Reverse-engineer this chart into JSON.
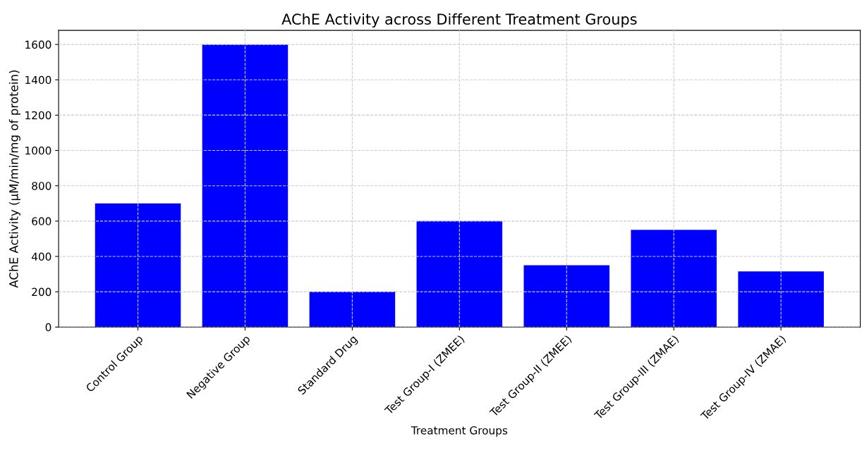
{
  "chart_data": {
    "type": "bar",
    "title": "AChE Activity across Different Treatment Groups",
    "xlabel": "Treatment Groups",
    "ylabel": "AChE Activity (µM/min/mg of protein)",
    "categories": [
      "Control Group",
      "Negative Group",
      "Standard Drug",
      "Test Group-I (ZMEE)",
      "Test Group-II (ZMEE)",
      "Test Group-III (ZMAE)",
      "Test Group-IV (ZMAE)"
    ],
    "values": [
      700,
      1600,
      200,
      600,
      350,
      550,
      315
    ],
    "color": "#0000ff",
    "ylim": [
      0,
      1680
    ],
    "yticks": [
      0,
      200,
      400,
      600,
      800,
      1000,
      1200,
      1400,
      1600
    ],
    "grid": true
  }
}
